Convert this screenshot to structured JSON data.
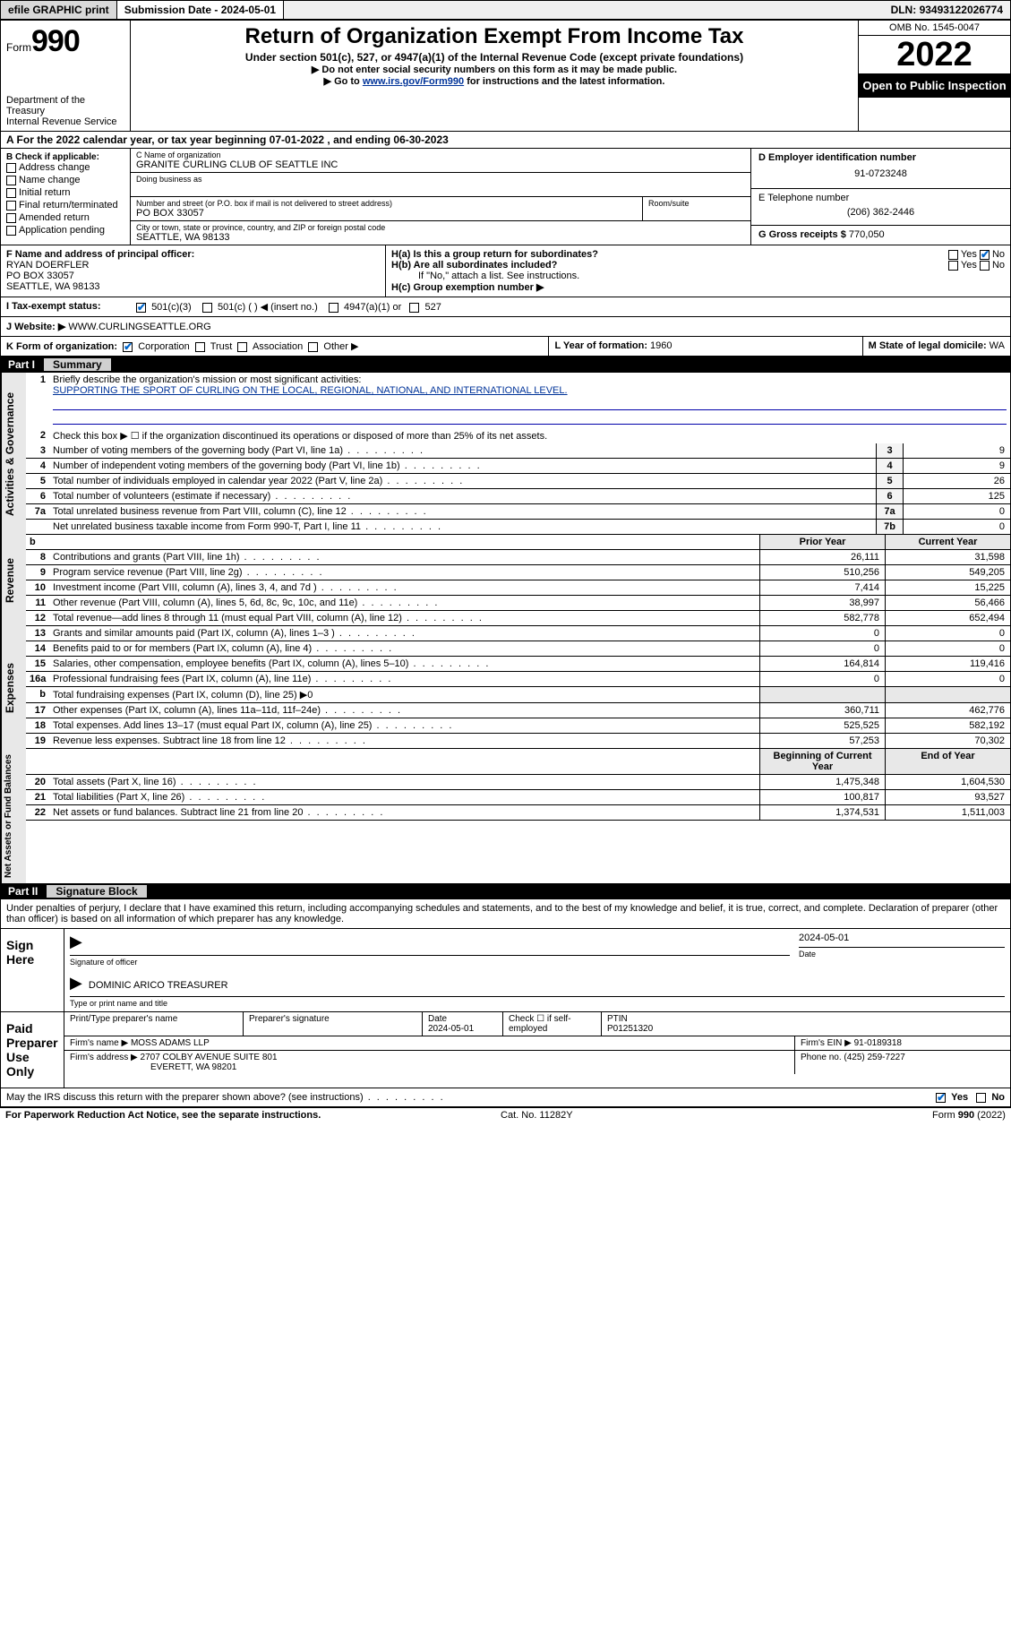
{
  "topbar": {
    "efile": "efile GRAPHIC print",
    "submission_label": "Submission Date - ",
    "submission_date": "2024-05-01",
    "dln_label": "DLN: ",
    "dln": "93493122026774"
  },
  "header": {
    "form_word": "Form",
    "form_num": "990",
    "dept": "Department of the Treasury",
    "irs": "Internal Revenue Service",
    "title": "Return of Organization Exempt From Income Tax",
    "subtitle": "Under section 501(c), 527, or 4947(a)(1) of the Internal Revenue Code (except private foundations)",
    "note1": "Do not enter social security numbers on this form as it may be made public.",
    "note2_pre": "Go to ",
    "note2_link": "www.irs.gov/Form990",
    "note2_post": " for instructions and the latest information.",
    "omb": "OMB No. 1545-0047",
    "year": "2022",
    "inspect": "Open to Public Inspection"
  },
  "row_a": {
    "text_pre": "A For the 2022 calendar year, or tax year beginning ",
    "begin": "07-01-2022",
    "mid": " , and ending ",
    "end": "06-30-2023"
  },
  "col_b": {
    "title": "B Check if applicable:",
    "items": [
      "Address change",
      "Name change",
      "Initial return",
      "Final return/terminated",
      "Amended return",
      "Application pending"
    ]
  },
  "org": {
    "c_lbl": "C Name of organization",
    "name": "GRANITE CURLING CLUB OF SEATTLE INC",
    "dba_lbl": "Doing business as",
    "dba": "",
    "addr_lbl": "Number and street (or P.O. box if mail is not delivered to street address)",
    "room_lbl": "Room/suite",
    "addr": "PO BOX 33057",
    "city_lbl": "City or town, state or province, country, and ZIP or foreign postal code",
    "city": "SEATTLE, WA  98133"
  },
  "col_d": {
    "d_lbl": "D Employer identification number",
    "ein": "91-0723248",
    "e_lbl": "E Telephone number",
    "phone": "(206) 362-2446",
    "g_lbl": "G Gross receipts $ ",
    "gross": "770,050"
  },
  "row_f": {
    "f_lbl": "F Name and address of principal officer:",
    "name": "RYAN DOERFLER",
    "addr1": "PO BOX 33057",
    "addr2": "SEATTLE, WA  98133",
    "ha": "H(a)  Is this a group return for subordinates?",
    "ha_yes": "Yes",
    "ha_no": "No",
    "hb": "H(b)  Are all subordinates included?",
    "hb_note": "If \"No,\" attach a list. See instructions.",
    "hc": "H(c)  Group exemption number ▶"
  },
  "row_i": {
    "lbl": "I  Tax-exempt status:",
    "o1": "501(c)(3)",
    "o2": "501(c) (  ) ◀ (insert no.)",
    "o3": "4947(a)(1) or",
    "o4": "527"
  },
  "row_j": {
    "lbl": "J  Website: ▶ ",
    "val": "WWW.CURLINGSEATTLE.ORG"
  },
  "row_k": {
    "lbl": "K Form of organization:",
    "o1": "Corporation",
    "o2": "Trust",
    "o3": "Association",
    "o4": "Other ▶",
    "l": "L Year of formation: ",
    "l_val": "1960",
    "m": "M State of legal domicile: ",
    "m_val": "WA"
  },
  "parts": {
    "p1": "Part I",
    "p1_ttl": "Summary",
    "p2": "Part II",
    "p2_ttl": "Signature Block"
  },
  "side": {
    "s1": "Activities & Governance",
    "s2": "Revenue",
    "s3": "Expenses",
    "s4": "Net Assets or Fund Balances"
  },
  "summary": {
    "l1": "Briefly describe the organization's mission or most significant activities:",
    "mission": "SUPPORTING THE SPORT OF CURLING ON THE LOCAL, REGIONAL, NATIONAL, AND INTERNATIONAL LEVEL.",
    "l2": "Check this box ▶ ☐  if the organization discontinued its operations or disposed of more than 25% of its net assets.",
    "rows_gov": [
      {
        "n": "3",
        "d": "Number of voting members of the governing body (Part VI, line 1a)",
        "b": "3",
        "v": "9"
      },
      {
        "n": "4",
        "d": "Number of independent voting members of the governing body (Part VI, line 1b)",
        "b": "4",
        "v": "9"
      },
      {
        "n": "5",
        "d": "Total number of individuals employed in calendar year 2022 (Part V, line 2a)",
        "b": "5",
        "v": "26"
      },
      {
        "n": "6",
        "d": "Total number of volunteers (estimate if necessary)",
        "b": "6",
        "v": "125"
      },
      {
        "n": "7a",
        "d": "Total unrelated business revenue from Part VIII, column (C), line 12",
        "b": "7a",
        "v": "0"
      },
      {
        "n": "",
        "d": "Net unrelated business taxable income from Form 990-T, Part I, line 11",
        "b": "7b",
        "v": "0"
      }
    ],
    "hdr_b": "b",
    "hdr_prior": "Prior Year",
    "hdr_curr": "Current Year",
    "rows_rev": [
      {
        "n": "8",
        "d": "Contributions and grants (Part VIII, line 1h)",
        "p": "26,111",
        "c": "31,598"
      },
      {
        "n": "9",
        "d": "Program service revenue (Part VIII, line 2g)",
        "p": "510,256",
        "c": "549,205"
      },
      {
        "n": "10",
        "d": "Investment income (Part VIII, column (A), lines 3, 4, and 7d )",
        "p": "7,414",
        "c": "15,225"
      },
      {
        "n": "11",
        "d": "Other revenue (Part VIII, column (A), lines 5, 6d, 8c, 9c, 10c, and 11e)",
        "p": "38,997",
        "c": "56,466"
      },
      {
        "n": "12",
        "d": "Total revenue—add lines 8 through 11 (must equal Part VIII, column (A), line 12)",
        "p": "582,778",
        "c": "652,494"
      }
    ],
    "rows_exp": [
      {
        "n": "13",
        "d": "Grants and similar amounts paid (Part IX, column (A), lines 1–3 )",
        "p": "0",
        "c": "0"
      },
      {
        "n": "14",
        "d": "Benefits paid to or for members (Part IX, column (A), line 4)",
        "p": "0",
        "c": "0"
      },
      {
        "n": "15",
        "d": "Salaries, other compensation, employee benefits (Part IX, column (A), lines 5–10)",
        "p": "164,814",
        "c": "119,416"
      },
      {
        "n": "16a",
        "d": "Professional fundraising fees (Part IX, column (A), line 11e)",
        "p": "0",
        "c": "0"
      },
      {
        "n": "b",
        "d": "Total fundraising expenses (Part IX, column (D), line 25) ▶0",
        "p": "",
        "c": ""
      },
      {
        "n": "17",
        "d": "Other expenses (Part IX, column (A), lines 11a–11d, 11f–24e)",
        "p": "360,711",
        "c": "462,776"
      },
      {
        "n": "18",
        "d": "Total expenses. Add lines 13–17 (must equal Part IX, column (A), line 25)",
        "p": "525,525",
        "c": "582,192"
      },
      {
        "n": "19",
        "d": "Revenue less expenses. Subtract line 18 from line 12",
        "p": "57,253",
        "c": "70,302"
      }
    ],
    "hdr_begin": "Beginning of Current Year",
    "hdr_end": "End of Year",
    "rows_net": [
      {
        "n": "20",
        "d": "Total assets (Part X, line 16)",
        "p": "1,475,348",
        "c": "1,604,530"
      },
      {
        "n": "21",
        "d": "Total liabilities (Part X, line 26)",
        "p": "100,817",
        "c": "93,527"
      },
      {
        "n": "22",
        "d": "Net assets or fund balances. Subtract line 21 from line 20",
        "p": "1,374,531",
        "c": "1,511,003"
      }
    ]
  },
  "sig": {
    "penalty": "Under penalties of perjury, I declare that I have examined this return, including accompanying schedules and statements, and to the best of my knowledge and belief, it is true, correct, and complete. Declaration of preparer (other than officer) is based on all information of which preparer has any knowledge.",
    "sign_here": "Sign Here",
    "sig_officer": "Signature of officer",
    "date_lbl": "Date",
    "sig_date": "2024-05-01",
    "name_title": "DOMINIC ARICO TREASURER",
    "type_lbl": "Type or print name and title",
    "paid": "Paid Preparer Use Only",
    "pt_name_lbl": "Print/Type preparer's name",
    "pt_sig_lbl": "Preparer's signature",
    "pt_date_lbl": "Date",
    "pt_date": "2024-05-01",
    "pt_check": "Check ☐ if self-employed",
    "ptin_lbl": "PTIN",
    "ptin": "P01251320",
    "firm_name_lbl": "Firm's name   ▶ ",
    "firm_name": "MOSS ADAMS LLP",
    "firm_ein_lbl": "Firm's EIN ▶ ",
    "firm_ein": "91-0189318",
    "firm_addr_lbl": "Firm's address ▶ ",
    "firm_addr1": "2707 COLBY AVENUE SUITE 801",
    "firm_addr2": "EVERETT, WA  98201",
    "firm_phone_lbl": "Phone no. ",
    "firm_phone": "(425) 259-7227",
    "discuss": "May the IRS discuss this return with the preparer shown above? (see instructions)",
    "yes": "Yes",
    "no": "No"
  },
  "footer": {
    "left": "For Paperwork Reduction Act Notice, see the separate instructions.",
    "mid": "Cat. No. 11282Y",
    "right": "Form 990 (2022)"
  },
  "colors": {
    "link": "#003399",
    "check": "#0066cc",
    "black": "#000000",
    "gray_bg": "#e8e8e8"
  }
}
